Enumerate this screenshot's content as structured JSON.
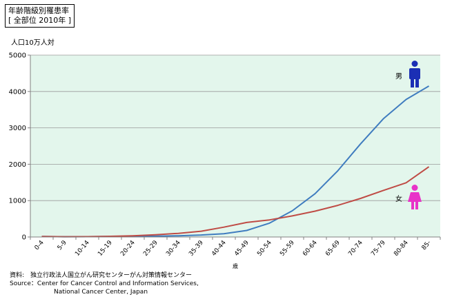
{
  "title_box": {
    "line1": "年齢階級別罹患率",
    "line2": "[ 全部位 2010年 ]"
  },
  "source": {
    "line1": "資料:　独立行政法人国立がん研究センターがん対策情報センター",
    "line2": "Source：Center for Cancer Control and Information Services,",
    "line3": "National Cancer Center, Japan"
  },
  "colors": {
    "plot_bg": "#e3f6ec",
    "male": "#3f7cbf",
    "female": "#bf4b45",
    "male_icon": "#1b2fb5",
    "female_icon": "#e833c8",
    "grid": "#9a9a9a"
  },
  "chart_data": {
    "type": "line",
    "ylabel": "人口10万人対",
    "xlabel": "歳",
    "ylim": [
      0,
      5000
    ],
    "yticks": [
      0,
      1000,
      2000,
      3000,
      4000,
      5000
    ],
    "grid": "horizontal",
    "categories": [
      "0-4",
      "5-9",
      "10-14",
      "15-19",
      "20-24",
      "25-29",
      "30-34",
      "35-39",
      "40-44",
      "45-49",
      "50-54",
      "55-59",
      "60-64",
      "65-69",
      "70-74",
      "75-79",
      "80-84",
      "85-"
    ],
    "series": [
      {
        "name": "男",
        "icon": "male-figure-icon",
        "values": [
          15,
          8,
          10,
          15,
          20,
          25,
          35,
          55,
          90,
          180,
          380,
          720,
          1190,
          1820,
          2560,
          3250,
          3780,
          4150
        ]
      },
      {
        "name": "女",
        "icon": "female-figure-icon",
        "values": [
          15,
          8,
          10,
          18,
          35,
          60,
          100,
          160,
          270,
          400,
          470,
          580,
          710,
          870,
          1060,
          1280,
          1490,
          1930
        ]
      }
    ]
  }
}
